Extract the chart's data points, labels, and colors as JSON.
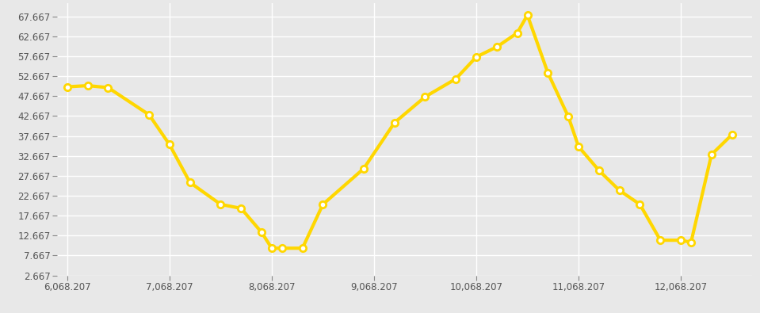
{
  "x_values": [
    6068207,
    6268207,
    6468207,
    6868207,
    7068207,
    7268207,
    7568207,
    7768207,
    7968207,
    8068207,
    8168207,
    8368207,
    8568207,
    8968207,
    9268207,
    9568207,
    9868207,
    10068207,
    10268207,
    10468207,
    10568207,
    10768207,
    10968207,
    11068207,
    11268207,
    11468207,
    11668207,
    11868207,
    12068207,
    12168207,
    12368207,
    12568207
  ],
  "y_values": [
    50.0,
    50.3,
    49.8,
    43.0,
    35.5,
    26.0,
    20.5,
    19.5,
    13.5,
    9.5,
    9.5,
    9.5,
    20.5,
    29.5,
    41.0,
    47.5,
    52.0,
    57.5,
    60.0,
    63.5,
    68.0,
    53.5,
    42.5,
    35.0,
    29.0,
    24.0,
    20.5,
    11.5,
    11.5,
    11.0,
    33.0,
    38.0
  ],
  "line_color": "#FFD700",
  "marker_face_color": "#FFFFFF",
  "marker_edge_color": "#FFD700",
  "background_color": "#E8E8E8",
  "grid_color": "#FFFFFF",
  "tick_color": "#555555",
  "xlim": [
    5968207,
    12768207
  ],
  "ylim": [
    2.667,
    71.0
  ],
  "yticks": [
    2.667,
    7.667,
    12.667,
    17.667,
    22.667,
    27.667,
    32.667,
    37.667,
    42.667,
    47.667,
    52.667,
    57.667,
    62.667,
    67.667
  ],
  "xticks": [
    6068207,
    7068207,
    8068207,
    9068207,
    10068207,
    11068207,
    12068207
  ],
  "xtick_labels": [
    "6,068.207",
    "7,068.207",
    "8,068.207",
    "9,068.207",
    "10,068.207",
    "11,068.207",
    "12,068.207"
  ],
  "ytick_labels": [
    "2.667",
    "7.667",
    "12.667",
    "17.667",
    "22.667",
    "27.667",
    "32.667",
    "37.667",
    "42.667",
    "47.667",
    "52.667",
    "57.667",
    "62.667",
    "67.667"
  ],
  "line_width": 3.0,
  "marker_size": 6
}
